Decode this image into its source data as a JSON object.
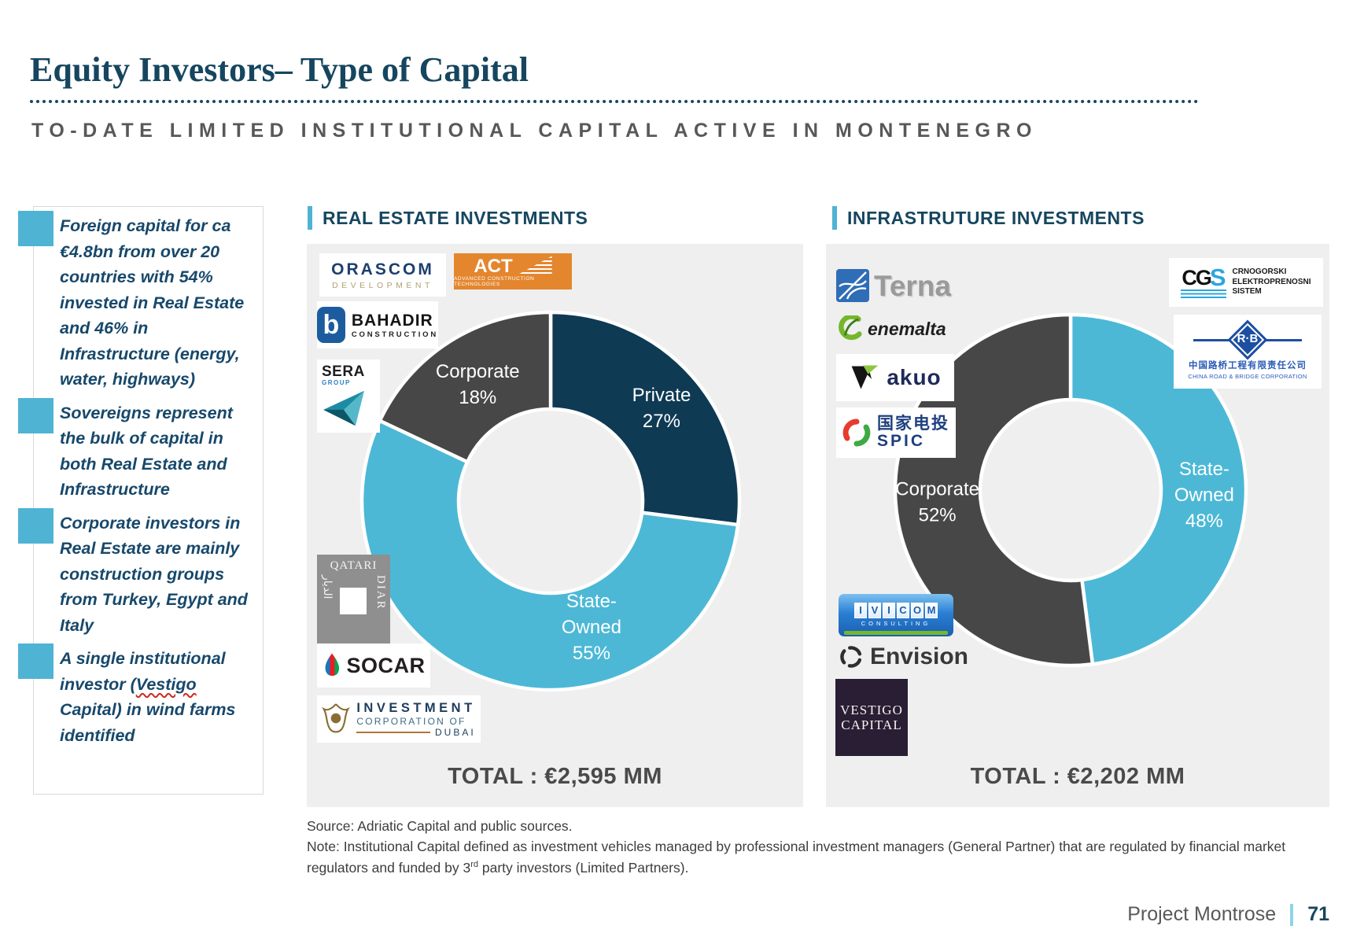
{
  "page": {
    "title": "Equity Investors– Type of Capital",
    "subtitle": "TO-DATE LIMITED INSTITUTIONAL CAPITAL ACTIVE IN MONTENEGRO",
    "footer": {
      "project": "Project Montrose",
      "page_number": "71"
    }
  },
  "colors": {
    "navy": "#16465F",
    "accent_blue": "#4FB3D4",
    "panel_bg": "#EFEFEF",
    "slice_private_navy": "#0E3A54",
    "slice_state_owned_blue": "#4CB8D6",
    "slice_corporate_gray": "#474747",
    "total_text": "#4A4A4A"
  },
  "sidebar": {
    "misspelled_word": "Vestigo",
    "bullets": [
      "Foreign capital for ca €4.8bn from over 20 countries with 54% invested in Real Estate and 46% in Infrastructure (energy, water, highways)",
      "Sovereigns represent the bulk of capital in both Real Estate and Infrastructure",
      "Corporate investors in Real Estate are mainly construction groups from Turkey, Egypt and Italy",
      "A single institutional investor (Vestigo Capital) in wind farms identified"
    ]
  },
  "chart_data": [
    {
      "type": "pie",
      "variant": "donut",
      "title": "REAL ESTATE INVESTMENTS",
      "total_label": "TOTAL : €2,595 MM",
      "legend_position": "inside",
      "slices": [
        {
          "label": "Private",
          "value": 27,
          "pct": "27%",
          "color": "#0E3A54",
          "label_lines": [
            "Private",
            "27%"
          ]
        },
        {
          "label": "State-Owned",
          "value": 55,
          "pct": "55%",
          "color": "#4CB8D6",
          "label_lines": [
            "State-",
            "Owned",
            "55%"
          ]
        },
        {
          "label": "Corporate",
          "value": 18,
          "pct": "18%",
          "color": "#474747",
          "label_lines": [
            "Corporate",
            "18%"
          ]
        }
      ]
    },
    {
      "type": "pie",
      "variant": "donut",
      "title": "INFRASTRUTURE INVESTMENTS",
      "total_label": "TOTAL : €2,202 MM",
      "legend_position": "inside",
      "slices": [
        {
          "label": "State-Owned",
          "value": 48,
          "pct": "48%",
          "color": "#4CB8D6",
          "label_lines": [
            "State-",
            "Owned",
            "48%"
          ]
        },
        {
          "label": "Corporate",
          "value": 52,
          "pct": "52%",
          "color": "#474747",
          "label_lines": [
            "Corporate",
            "52%"
          ]
        }
      ]
    }
  ],
  "logos": {
    "orascom": {
      "line1": "ORASCOM",
      "line2": "DEVELOPMENT"
    },
    "act": {
      "name": "ACT",
      "sub": "ADVANCED CONSTRUCTION TECHNOLOGIES"
    },
    "bahadir": {
      "icon_letter": "b",
      "name": "BAHADIR",
      "sub": "CONSTRUCTION"
    },
    "sera": {
      "name": "SERA",
      "sub": "GROUP"
    },
    "qatari_diar": {
      "line1": "QATARI",
      "line2": "DIAR",
      "arabic": "الديار"
    },
    "socar": {
      "name": "SOCAR"
    },
    "icd": {
      "line1": "INVESTMENT",
      "line2": "CORPORATION OF",
      "line3": "DUBAI"
    },
    "terna": {
      "name": "Terna"
    },
    "enemalta": {
      "name": "enemalta"
    },
    "akuo": {
      "name": "akuo"
    },
    "spic": {
      "cn": "国家电投",
      "name": "SPIC"
    },
    "ivicom": {
      "name": "IVICOM",
      "sub": "CONSULTING"
    },
    "envision": {
      "name": "Envision"
    },
    "vestigo": {
      "line1": "VESTIGO",
      "line2": "CAPITAL"
    },
    "cges": {
      "mark_cg": "CG",
      "mark_s": "S",
      "line1": "CRNOGORSKI",
      "line2": "ELEKTROPRENOSNI",
      "line3": "SISTEM"
    },
    "crbc": {
      "mark": "R·B",
      "cn": "中国路桥工程有限责任公司",
      "en": "CHINA ROAD & BRIDGE CORPORATION"
    }
  },
  "notes": {
    "source": "Source: Adriatic Capital and public sources.",
    "note_pre": "Note: Institutional Capital defined as investment vehicles managed by professional investment managers (General Partner) that are regulated by financial market regulators and funded by 3",
    "note_sup": "rd",
    "note_post": " party investors (Limited Partners)."
  }
}
